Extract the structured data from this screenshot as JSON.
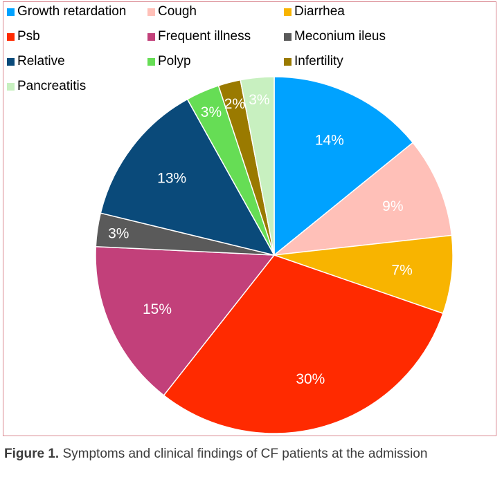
{
  "chart_data": {
    "type": "pie",
    "start_angle_deg": 0,
    "direction": "clockwise",
    "legend_position": "top",
    "slices": [
      {
        "label": "Growth retardation",
        "value": 14,
        "value_label": "14%",
        "color": "#00a2ff"
      },
      {
        "label": "Cough",
        "value": 9,
        "value_label": "9%",
        "color": "#ffc0b8"
      },
      {
        "label": "Diarrhea",
        "value": 7,
        "value_label": "7%",
        "color": "#f8b400"
      },
      {
        "label": "Psb",
        "value": 30,
        "value_label": "30%",
        "color": "#ff2a00"
      },
      {
        "label": "Frequent illness",
        "value": 15,
        "value_label": "15%",
        "color": "#c2407a"
      },
      {
        "label": "Meconium ileus",
        "value": 3,
        "value_label": "3%",
        "color": "#5a5a5a"
      },
      {
        "label": "Relative",
        "value": 13,
        "value_label": "13%",
        "color": "#0a4a7a"
      },
      {
        "label": "Polyp",
        "value": 3,
        "value_label": "3%",
        "color": "#66dd55"
      },
      {
        "label": "Infertility",
        "value": 2,
        "value_label": "2%",
        "color": "#9a7a00"
      },
      {
        "label": "Pancreatitis",
        "value": 3,
        "value_label": "3%",
        "color": "#c8f0c0"
      }
    ]
  },
  "caption": {
    "label": "Figure 1.",
    "text": "Symptoms and clinical findings of CF patients at the admission"
  }
}
